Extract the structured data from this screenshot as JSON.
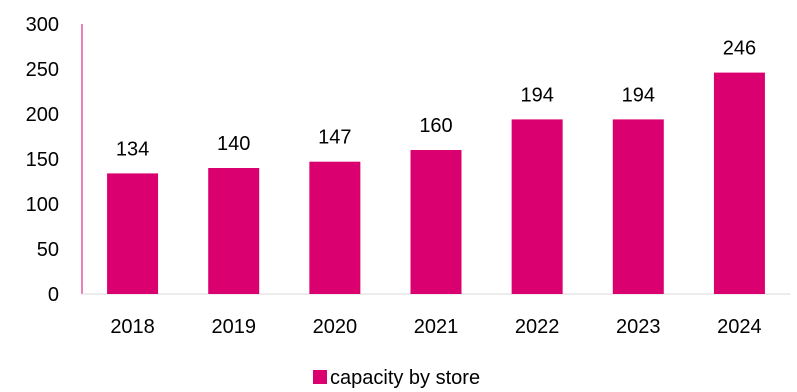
{
  "chart_data": {
    "type": "bar",
    "categories": [
      "2018",
      "2019",
      "2020",
      "2021",
      "2022",
      "2023",
      "2024"
    ],
    "series": [
      {
        "name": "capacity by store",
        "values": [
          134,
          140,
          147,
          160,
          194,
          194,
          246
        ]
      }
    ],
    "data_labels": [
      "134",
      "140",
      "147",
      "160",
      "194",
      "194",
      "246"
    ],
    "y_ticks": [
      "0",
      "50",
      "100",
      "150",
      "200",
      "250",
      "300"
    ],
    "ylim": [
      0,
      300
    ],
    "grid": false,
    "legend_position": "bottom",
    "colors": {
      "bar": "#DB0070",
      "axis": "#DB0070"
    }
  }
}
